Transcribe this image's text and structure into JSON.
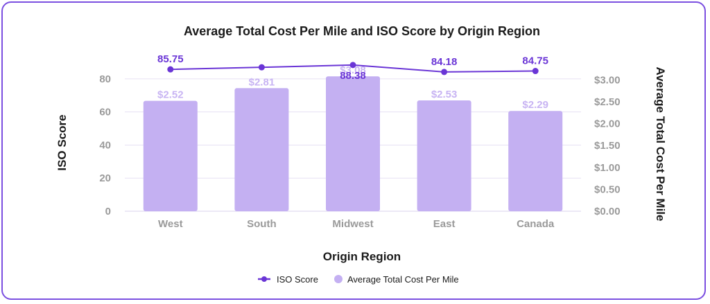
{
  "chart_data": {
    "type": "bar",
    "title": "Average Total Cost Per Mile and ISO Score by Origin Region",
    "xlabel": "Origin Region",
    "ylabel_left": "ISO Score",
    "ylabel_right": "Average Total Cost Per Mile",
    "categories": [
      "West",
      "South",
      "Midwest",
      "East",
      "Canada"
    ],
    "series": [
      {
        "name": "ISO Score",
        "kind": "line",
        "axis": "left",
        "values": [
          85.75,
          87.0,
          88.38,
          84.18,
          84.75
        ],
        "labels": [
          "85.75",
          "",
          "88.38",
          "84.18",
          "84.75"
        ],
        "color": "#6a35d6"
      },
      {
        "name": "Average Total Cost Per Mile",
        "kind": "bar",
        "axis": "right",
        "values": [
          2.52,
          2.81,
          3.08,
          2.53,
          2.29
        ],
        "labels": [
          "$2.52",
          "$2.81",
          "$3.08",
          "$2.53",
          "$2.29"
        ],
        "color": "#c4b0f2"
      }
    ],
    "left_axis": {
      "min": 0,
      "max": 90,
      "ticks": [
        "0",
        "20",
        "40",
        "60",
        "80"
      ],
      "tick_values": [
        0,
        20,
        40,
        60,
        80
      ]
    },
    "right_axis": {
      "min": 0,
      "max": 3.4,
      "ticks": [
        "$0.00",
        "$0.50",
        "$1.00",
        "$1.50",
        "$2.00",
        "$2.50",
        "$3.00"
      ],
      "tick_values": [
        0,
        0.5,
        1.0,
        1.5,
        2.0,
        2.5,
        3.0
      ]
    },
    "grid": true,
    "legend_position": "bottom-center"
  },
  "legend": {
    "items": [
      {
        "label": "ISO Score",
        "kind": "line",
        "color": "#6a35d6"
      },
      {
        "label": "Average Total Cost Per Mile",
        "kind": "bar",
        "color": "#c4b0f2"
      }
    ]
  },
  "colors": {
    "border": "#7b4fe0",
    "grid": "#e6e1f4",
    "tick": "#9a9a9a"
  }
}
